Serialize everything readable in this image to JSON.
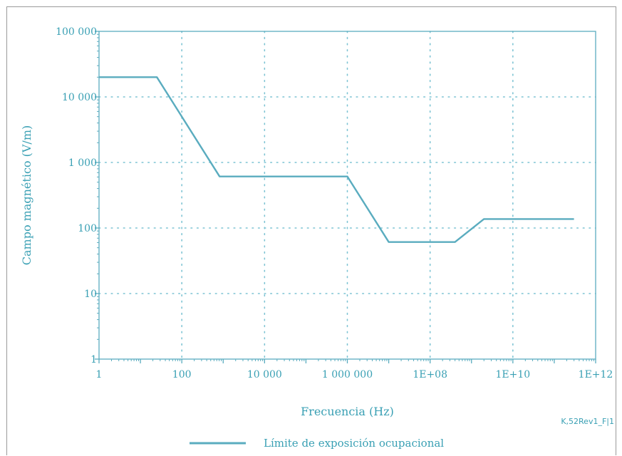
{
  "colors": {
    "accent": "#5aacbf",
    "grid": "#7cc3d3",
    "text": "#3aa0b4",
    "frame": "#9a9a9a"
  },
  "figure_id": "K,52Rev1_F|1",
  "chart_data": {
    "type": "line",
    "xlabel": "Frecuencia (Hz)",
    "ylabel": "Campo magnético (V/m)",
    "x_scale": "log",
    "y_scale": "log",
    "xlim": [
      1,
      1000000000000
    ],
    "ylim": [
      1,
      100000
    ],
    "grid": true,
    "legend_position": "bottom-center",
    "x_ticks": [
      {
        "value": 1,
        "label": "1"
      },
      {
        "value": 100,
        "label": "100"
      },
      {
        "value": 10000,
        "label": "10 000"
      },
      {
        "value": 1000000,
        "label": "1 000 000"
      },
      {
        "value": 100000000,
        "label": "1E+08"
      },
      {
        "value": 10000000000,
        "label": "1E+10"
      },
      {
        "value": 1000000000000,
        "label": "1E+12"
      }
    ],
    "y_ticks": [
      {
        "value": 1,
        "label": "1"
      },
      {
        "value": 10,
        "label": "10"
      },
      {
        "value": 100,
        "label": "100"
      },
      {
        "value": 1000,
        "label": "1 000"
      },
      {
        "value": 10000,
        "label": "10 000"
      },
      {
        "value": 100000,
        "label": "100 000"
      }
    ],
    "series": [
      {
        "name": "Límite de exposición ocupacional",
        "color": "#5aacbf",
        "x": [
          1,
          25,
          820,
          1000000,
          10000000,
          400000000,
          2000000000,
          300000000000
        ],
        "y": [
          20000,
          20000,
          610,
          610,
          61,
          61,
          137,
          137
        ]
      }
    ]
  }
}
